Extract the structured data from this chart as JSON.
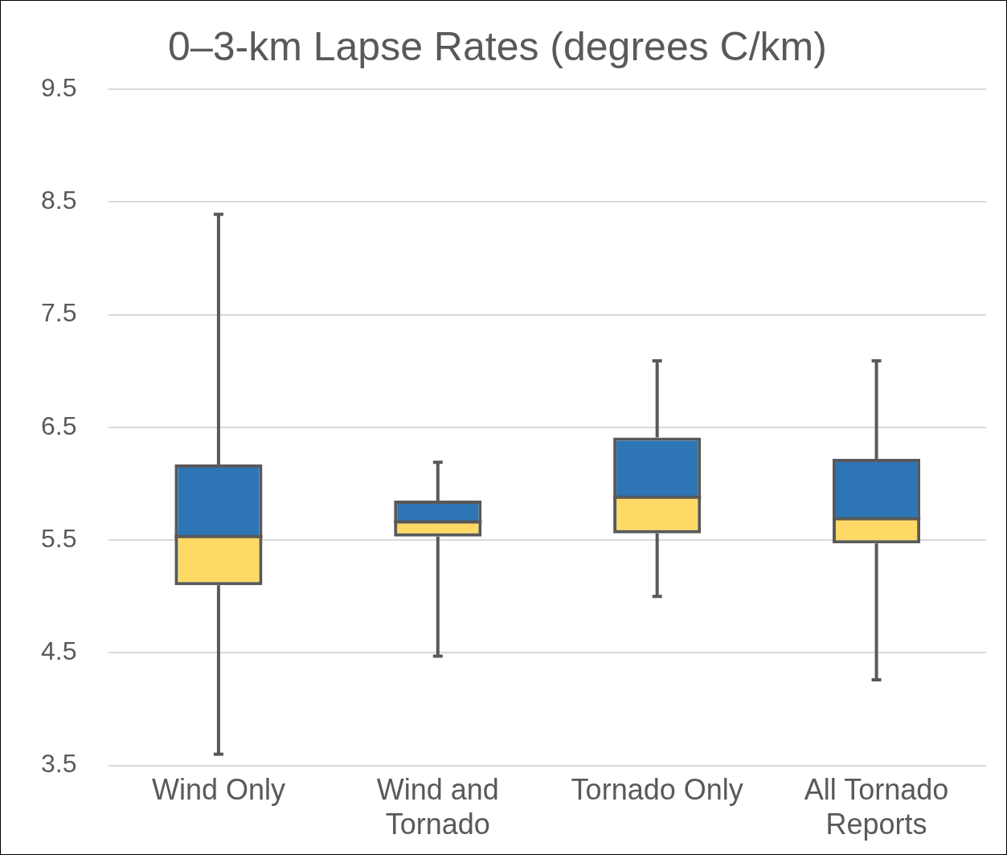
{
  "chart_data": {
    "type": "box",
    "title": "0–3-km Lapse Rates (degrees C/km)",
    "categories": [
      "Wind Only",
      "Wind and Tornado",
      "Tornado Only",
      "All Tornado Reports"
    ],
    "series": [
      {
        "color": "#595959",
        "boxes": [
          {
            "low": 3.6,
            "q1": 5.1,
            "median": 5.53,
            "q3": 6.17,
            "high": 8.39
          },
          {
            "low": 4.47,
            "q1": 5.53,
            "median": 5.66,
            "q3": 5.85,
            "high": 6.19
          },
          {
            "low": 5.0,
            "q1": 5.56,
            "median": 5.88,
            "q3": 6.41,
            "high": 7.09
          },
          {
            "low": 4.26,
            "q1": 5.47,
            "median": 5.69,
            "q3": 6.22,
            "high": 7.09
          }
        ]
      }
    ],
    "ylim": [
      3.5,
      9.5
    ],
    "yticks": [
      3.5,
      4.5,
      5.5,
      6.5,
      7.5,
      8.5,
      9.5
    ],
    "grid": "y",
    "legend": false
  }
}
